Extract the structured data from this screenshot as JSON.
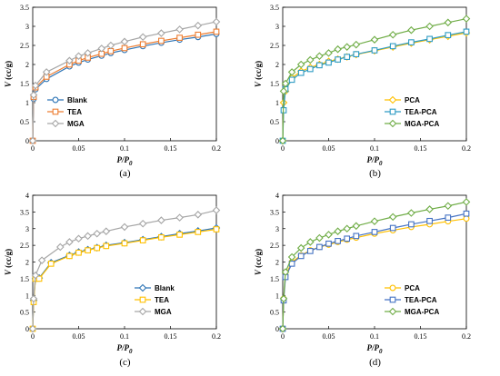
{
  "chart_data": [
    {
      "type": "scatter",
      "panel_label": "(a)",
      "xlabel_main": "P/P",
      "xlabel_sub": "0",
      "ylabel_main": "V",
      "ylabel_unit": " (cc/g)",
      "xlim": [
        0,
        0.2
      ],
      "ylim": [
        0,
        3.5
      ],
      "xticks": [
        0,
        0.05,
        0.1,
        0.15,
        0.2
      ],
      "xtick_labels": [
        "0",
        "0.05",
        "0.1",
        "0.15",
        "0.2"
      ],
      "yticks": [
        0,
        0.5,
        1,
        1.5,
        2,
        2.5,
        3,
        3.5
      ],
      "ytick_labels": [
        "0",
        "0.5",
        "1",
        "1.5",
        "2",
        "2.5",
        "3",
        "3.5"
      ],
      "legend_position": "bottom-left",
      "series": [
        {
          "name": "Blank",
          "color": "#2e75b6",
          "marker": "circle",
          "x": [
            0,
            0.001,
            0.003,
            0.015,
            0.04,
            0.05,
            0.06,
            0.075,
            0.085,
            0.1,
            0.12,
            0.14,
            0.16,
            0.18,
            0.2
          ],
          "y": [
            0,
            1.1,
            1.35,
            1.62,
            1.95,
            2.05,
            2.13,
            2.23,
            2.3,
            2.38,
            2.48,
            2.57,
            2.65,
            2.72,
            2.8
          ]
        },
        {
          "name": "TEA",
          "color": "#ed7d31",
          "marker": "square",
          "x": [
            0,
            0.001,
            0.003,
            0.015,
            0.04,
            0.05,
            0.06,
            0.075,
            0.085,
            0.1,
            0.12,
            0.14,
            0.16,
            0.18,
            0.2
          ],
          "y": [
            0,
            1.15,
            1.4,
            1.68,
            2.0,
            2.1,
            2.18,
            2.28,
            2.35,
            2.43,
            2.53,
            2.62,
            2.7,
            2.78,
            2.86
          ]
        },
        {
          "name": "MGA",
          "color": "#a6a6a6",
          "marker": "diamond",
          "x": [
            0,
            0.001,
            0.003,
            0.015,
            0.04,
            0.05,
            0.06,
            0.075,
            0.085,
            0.1,
            0.12,
            0.14,
            0.16,
            0.18,
            0.2
          ],
          "y": [
            0,
            1.2,
            1.45,
            1.8,
            2.1,
            2.22,
            2.3,
            2.42,
            2.5,
            2.6,
            2.72,
            2.82,
            2.92,
            3.02,
            3.12
          ]
        }
      ]
    },
    {
      "type": "scatter",
      "panel_label": "(b)",
      "xlabel_main": "P/P",
      "xlabel_sub": "0",
      "ylabel_main": "V",
      "ylabel_unit": " (cc/g)",
      "xlim": [
        0,
        0.2
      ],
      "ylim": [
        0,
        3.5
      ],
      "xticks": [
        0,
        0.05,
        0.1,
        0.15,
        0.2
      ],
      "xtick_labels": [
        "0",
        "0.05",
        "0.1",
        "0.15",
        "0.2"
      ],
      "yticks": [
        0,
        0.5,
        1,
        1.5,
        2,
        2.5,
        3,
        3.5
      ],
      "ytick_labels": [
        "0",
        "0.5",
        "1",
        "1.5",
        "2",
        "2.5",
        "3",
        "3.5"
      ],
      "legend_position": "bottom-right",
      "series": [
        {
          "name": "PCA",
          "color": "#ffc000",
          "marker": "diamond",
          "x": [
            0,
            0.001,
            0.003,
            0.01,
            0.02,
            0.03,
            0.04,
            0.05,
            0.06,
            0.07,
            0.08,
            0.1,
            0.12,
            0.14,
            0.16,
            0.18,
            0.2
          ],
          "y": [
            0,
            1.0,
            1.3,
            1.65,
            1.82,
            1.92,
            2.0,
            2.08,
            2.14,
            2.2,
            2.26,
            2.36,
            2.46,
            2.56,
            2.65,
            2.74,
            2.83
          ]
        },
        {
          "name": "TEA-PCA",
          "color": "#2e9bc4",
          "marker": "square",
          "x": [
            0,
            0.001,
            0.003,
            0.01,
            0.02,
            0.03,
            0.04,
            0.05,
            0.06,
            0.07,
            0.08,
            0.1,
            0.12,
            0.14,
            0.16,
            0.18,
            0.2
          ],
          "y": [
            0,
            0.8,
            1.35,
            1.6,
            1.78,
            1.88,
            1.98,
            2.05,
            2.13,
            2.2,
            2.27,
            2.37,
            2.48,
            2.58,
            2.67,
            2.77,
            2.86
          ]
        },
        {
          "name": "MGA-PCA",
          "color": "#70ad47",
          "marker": "diamond",
          "x": [
            0,
            0.001,
            0.003,
            0.01,
            0.02,
            0.03,
            0.04,
            0.05,
            0.06,
            0.07,
            0.08,
            0.1,
            0.12,
            0.14,
            0.16,
            0.18,
            0.2
          ],
          "y": [
            0,
            1.3,
            1.5,
            1.8,
            2.0,
            2.12,
            2.22,
            2.3,
            2.4,
            2.46,
            2.52,
            2.65,
            2.78,
            2.9,
            3.0,
            3.1,
            3.2
          ]
        }
      ]
    },
    {
      "type": "scatter",
      "panel_label": "(c)",
      "xlabel_main": "P/P",
      "xlabel_sub": "0",
      "ylabel_main": "V",
      "ylabel_unit": " (cc/g)",
      "xlim": [
        0,
        0.2
      ],
      "ylim": [
        0,
        4
      ],
      "xticks": [
        0,
        0.05,
        0.1,
        0.15,
        0.2
      ],
      "xtick_labels": [
        "0",
        "0.05",
        "0.1",
        "0.15",
        "0.2"
      ],
      "yticks": [
        0,
        0.5,
        1,
        1.5,
        2,
        2.5,
        3,
        3.5,
        4
      ],
      "ytick_labels": [
        "0",
        "0.5",
        "1",
        "1.5",
        "2",
        "2.5",
        "3",
        "3.5",
        "4"
      ],
      "legend_position": "bottom-right",
      "series": [
        {
          "name": "Blank",
          "color": "#2e75b6",
          "marker": "diamond",
          "x": [
            0,
            0.001,
            0.003,
            0.007,
            0.02,
            0.04,
            0.05,
            0.06,
            0.07,
            0.08,
            0.1,
            0.12,
            0.14,
            0.16,
            0.18,
            0.2
          ],
          "y": [
            0,
            0.85,
            1.5,
            1.52,
            1.98,
            2.2,
            2.3,
            2.37,
            2.43,
            2.5,
            2.58,
            2.67,
            2.76,
            2.85,
            2.93,
            3.02
          ]
        },
        {
          "name": "TEA",
          "color": "#ffc000",
          "marker": "square",
          "x": [
            0,
            0.001,
            0.003,
            0.007,
            0.02,
            0.04,
            0.05,
            0.06,
            0.07,
            0.08,
            0.1,
            0.12,
            0.14,
            0.16,
            0.18,
            0.2
          ],
          "y": [
            0,
            0.8,
            1.5,
            1.5,
            1.95,
            2.18,
            2.28,
            2.35,
            2.42,
            2.48,
            2.56,
            2.65,
            2.74,
            2.82,
            2.9,
            2.98
          ]
        },
        {
          "name": "MGA",
          "color": "#a6a6a6",
          "marker": "diamond",
          "x": [
            0,
            0.001,
            0.003,
            0.01,
            0.03,
            0.04,
            0.05,
            0.06,
            0.07,
            0.08,
            0.1,
            0.12,
            0.14,
            0.16,
            0.18,
            0.2
          ],
          "y": [
            0,
            0.9,
            1.6,
            2.05,
            2.45,
            2.6,
            2.7,
            2.78,
            2.85,
            2.92,
            3.05,
            3.15,
            3.25,
            3.33,
            3.42,
            3.55
          ]
        }
      ]
    },
    {
      "type": "scatter",
      "panel_label": "(d)",
      "xlabel_main": "P/P",
      "xlabel_sub": "0",
      "ylabel_main": "V",
      "ylabel_unit": " (cc/g)",
      "xlim": [
        0,
        0.2
      ],
      "ylim": [
        0,
        4
      ],
      "xticks": [
        0,
        0.05,
        0.1,
        0.15,
        0.2
      ],
      "xtick_labels": [
        "0",
        "0.05",
        "0.1",
        "0.15",
        "0.2"
      ],
      "yticks": [
        0,
        0.5,
        1,
        1.5,
        2,
        2.5,
        3,
        3.5,
        4
      ],
      "ytick_labels": [
        "0",
        "0.5",
        "1",
        "1.5",
        "2",
        "2.5",
        "3",
        "3.5",
        "4"
      ],
      "legend_position": "bottom-right",
      "series": [
        {
          "name": "PCA",
          "color": "#ffc000",
          "marker": "circle",
          "x": [
            0,
            0.001,
            0.003,
            0.01,
            0.02,
            0.03,
            0.04,
            0.05,
            0.06,
            0.07,
            0.08,
            0.1,
            0.12,
            0.14,
            0.16,
            0.18,
            0.2
          ],
          "y": [
            0,
            0.9,
            1.6,
            2.0,
            2.2,
            2.35,
            2.45,
            2.52,
            2.6,
            2.67,
            2.73,
            2.85,
            2.95,
            3.05,
            3.13,
            3.22,
            3.3
          ]
        },
        {
          "name": "TEA-PCA",
          "color": "#4472c4",
          "marker": "square",
          "x": [
            0,
            0.001,
            0.003,
            0.01,
            0.02,
            0.03,
            0.04,
            0.05,
            0.06,
            0.07,
            0.08,
            0.1,
            0.12,
            0.14,
            0.16,
            0.18,
            0.2
          ],
          "y": [
            0,
            0.85,
            1.55,
            1.95,
            2.18,
            2.33,
            2.45,
            2.55,
            2.63,
            2.7,
            2.78,
            2.9,
            3.02,
            3.13,
            3.23,
            3.33,
            3.45
          ]
        },
        {
          "name": "MGA-PCA",
          "color": "#70ad47",
          "marker": "diamond",
          "x": [
            0,
            0.001,
            0.003,
            0.01,
            0.02,
            0.03,
            0.04,
            0.05,
            0.06,
            0.07,
            0.08,
            0.1,
            0.12,
            0.14,
            0.16,
            0.18,
            0.2
          ],
          "y": [
            0,
            0.9,
            1.7,
            2.15,
            2.42,
            2.6,
            2.72,
            2.82,
            2.92,
            3.0,
            3.08,
            3.22,
            3.35,
            3.47,
            3.58,
            3.68,
            3.8
          ]
        }
      ]
    }
  ]
}
